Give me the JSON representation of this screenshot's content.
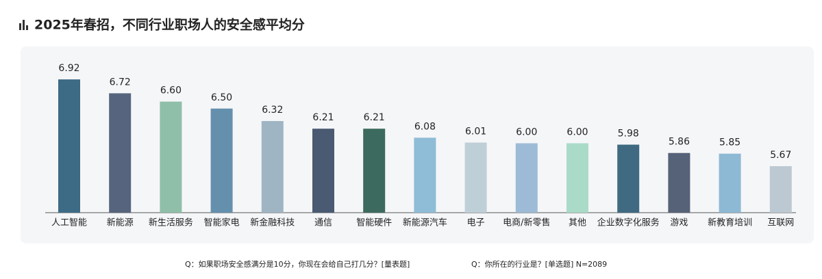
{
  "chart_data": {
    "type": "bar",
    "title": "2025年春招，不同行业职场人的安全感平均分",
    "categories": [
      "人工智能",
      "新能源",
      "新生活服务",
      "智能家电",
      "新金融科技",
      "通信",
      "智能硬件",
      "新能源汽车",
      "电子",
      "电商/新零售",
      "其他",
      "企业数字化服务",
      "游戏",
      "新教育培训",
      "互联网"
    ],
    "values": [
      6.92,
      6.72,
      6.6,
      6.5,
      6.32,
      6.21,
      6.21,
      6.08,
      6.01,
      6.0,
      6.0,
      5.98,
      5.86,
      5.85,
      5.67
    ],
    "value_labels": [
      "6.92",
      "6.72",
      "6.60",
      "6.50",
      "6.32",
      "6.21",
      "6.21",
      "6.08",
      "6.01",
      "6.00",
      "6.00",
      "5.98",
      "5.86",
      "5.85",
      "5.67"
    ],
    "colors": [
      "#3d6a85",
      "#56657d",
      "#8fbfa8",
      "#6590ad",
      "#9fb5c4",
      "#4a5a72",
      "#3c6a5e",
      "#8fbcd6",
      "#bfcfd8",
      "#9dbbd6",
      "#a9dbc8",
      "#3f6a82",
      "#566278",
      "#8db9d4",
      "#bcc9d2"
    ],
    "ylim": [
      5,
      7
    ],
    "notes": [
      "Q：如果职场安全感满分是10分，你现在会给自己打几分？[量表题]",
      "Q：你所在的行业是？[单选题]   N=2089"
    ]
  }
}
